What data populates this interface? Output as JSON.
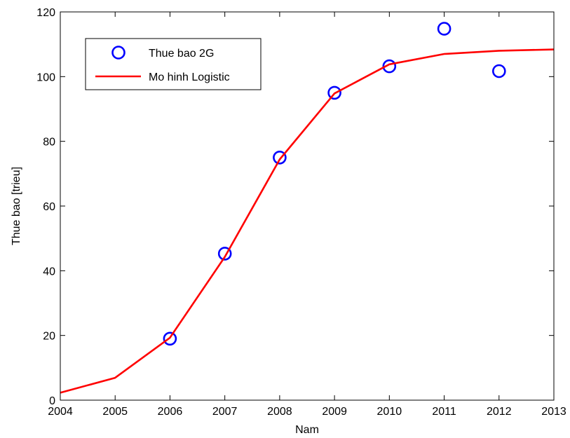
{
  "chart_data": {
    "type": "line",
    "title": "",
    "xlabel": "Nam",
    "ylabel": "Thue bao [trieu]",
    "xlim": [
      2004,
      2013
    ],
    "ylim": [
      0,
      120
    ],
    "xticks": [
      2004,
      2005,
      2006,
      2007,
      2008,
      2009,
      2010,
      2011,
      2012,
      2013
    ],
    "yticks": [
      0,
      20,
      40,
      60,
      80,
      100,
      120
    ],
    "grid": false,
    "legend_position": "top-left",
    "series": [
      {
        "name": "Thue bao 2G",
        "style": "markers",
        "marker": "circle",
        "color": "#0000ff",
        "x": [
          2006,
          2007,
          2008,
          2009,
          2010,
          2011,
          2012
        ],
        "y": [
          19,
          45.3,
          75,
          95,
          103.2,
          114.8,
          101.7
        ]
      },
      {
        "name": "Mo hinh Logistic",
        "style": "line",
        "color": "#ff0000",
        "x": [
          2004,
          2005,
          2006,
          2007,
          2008,
          2009,
          2010,
          2011,
          2012,
          2013
        ],
        "y": [
          2.3,
          6.9,
          19.3,
          44.3,
          74.4,
          94.8,
          103.8,
          107,
          108,
          108.4
        ]
      }
    ]
  }
}
